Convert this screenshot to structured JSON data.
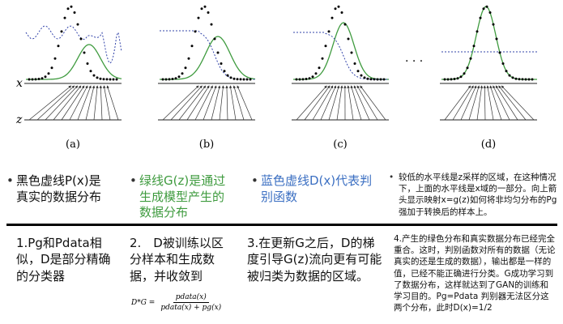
{
  "panels": {
    "labels": [
      "(a)",
      "(b)",
      "(c)",
      "(d)"
    ],
    "x_axis": "x",
    "z_axis": "z",
    "ellipsis": "· · ·"
  },
  "notes": [
    "黑色虚线P(x)是真实的数据分布",
    "绿线G(z)是通过生成模型产生的数据分布",
    "蓝色虚线D(x)代表判别函数",
    "较低的水平线是z采样的区域，在这种情况下，上面的水平线是x域的一部分。向上箭头显示映射x=g(z)如何将非均匀分布的Pg强加于转换后的样本上。"
  ],
  "descriptions": [
    "1.Pg和Pdata相似，D是部分精确的分类器",
    "2.　D被训练以区分样本和生成数据，并收敛到",
    "3.在更新G之后，D的梯度引导G(z)流向更有可能被归类为数据的区域。",
    "4.产生的绿色分布和真实数据分布已经完全重合。这时，判别函数对所有的数据（无论真实的还是生成的数据），输出都是一样的值，已经不能正确进行分类。G成功学习到了数据分布，这样就达到了GAN的训练和学习目的。Pg=Pdata 判别器无法区分这两个分布，此时D(x)=1/2"
  ],
  "formula": {
    "lhs": "D*G =",
    "numerator": "pdata(x)",
    "denominator": "pdata(x) + pg(x)"
  }
}
